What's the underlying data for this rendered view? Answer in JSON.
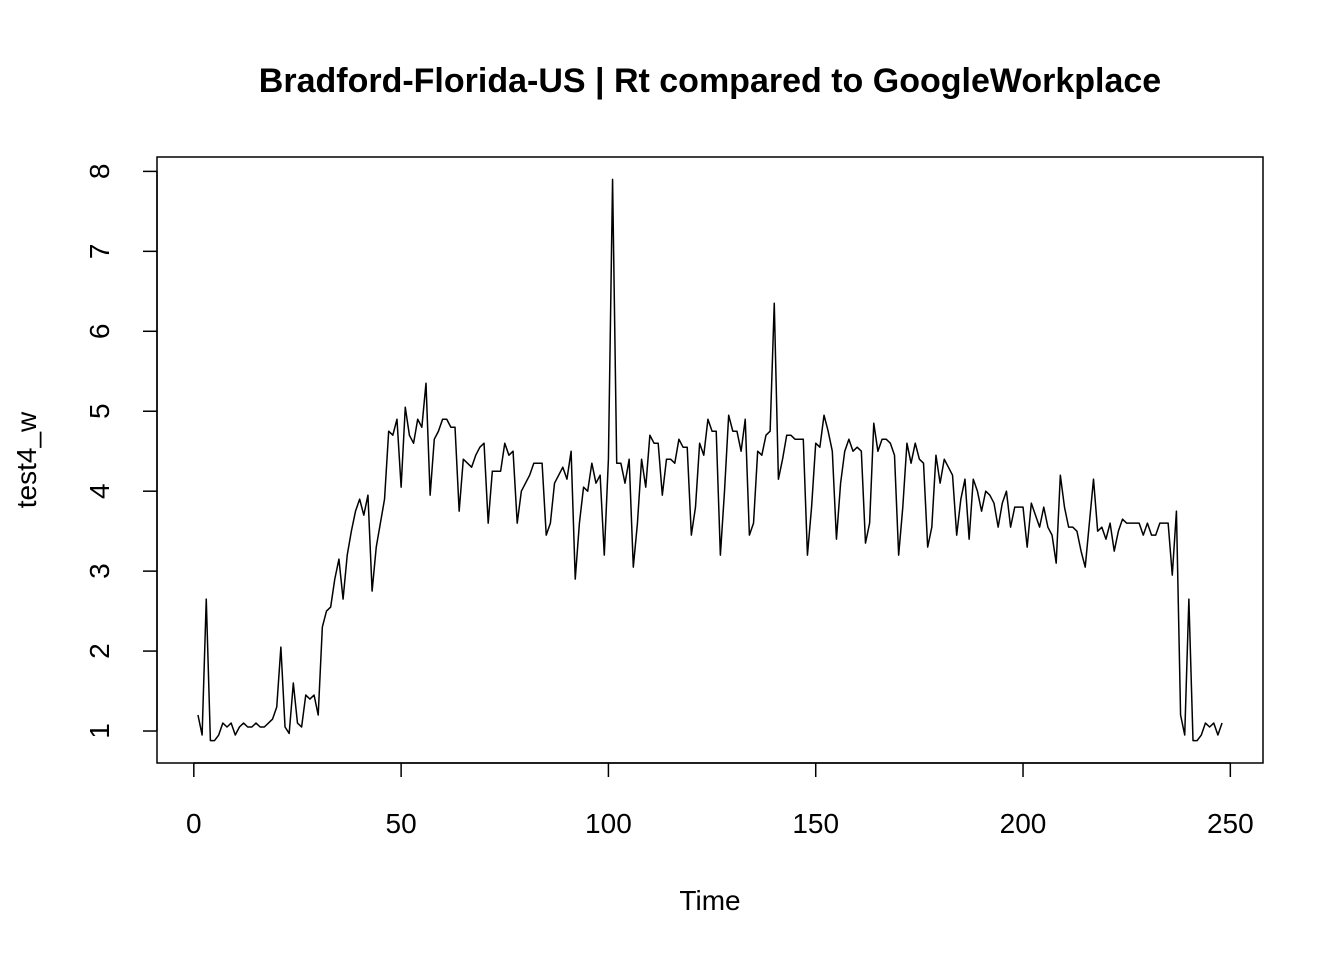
{
  "chart_data": {
    "type": "line",
    "title": "Bradford-Florida-US | Rt compared to GoogleWorkplace",
    "x_label": "Time",
    "y_label": "test4_w",
    "xlim": [
      -8.88,
      257.88
    ],
    "ylim": [
      0.6,
      8.18
    ],
    "xticks": [
      0,
      50,
      100,
      150,
      200,
      250
    ],
    "yticks": [
      1,
      2,
      3,
      4,
      5,
      6,
      7,
      8
    ],
    "series": [
      {
        "color": "#000000",
        "x": [
          1,
          2,
          3,
          4,
          5,
          6,
          7,
          8,
          9,
          10,
          11,
          12,
          13,
          14,
          15,
          16,
          17,
          18,
          19,
          20,
          21,
          22,
          23,
          24,
          25,
          26,
          27,
          28,
          29,
          30,
          31,
          32,
          33,
          34,
          35,
          36,
          37,
          38,
          39,
          40,
          41,
          42,
          43,
          44,
          45,
          46,
          47,
          48,
          49,
          50,
          51,
          52,
          53,
          54,
          55,
          56,
          57,
          58,
          59,
          60,
          61,
          62,
          63,
          64,
          65,
          66,
          67,
          68,
          69,
          70,
          71,
          72,
          73,
          74,
          75,
          76,
          77,
          78,
          79,
          80,
          81,
          82,
          83,
          84,
          85,
          86,
          87,
          88,
          89,
          90,
          91,
          92,
          93,
          94,
          95,
          96,
          97,
          98,
          99,
          100,
          101,
          102,
          103,
          104,
          105,
          106,
          107,
          108,
          109,
          110,
          111,
          112,
          113,
          114,
          115,
          116,
          117,
          118,
          119,
          120,
          121,
          122,
          123,
          124,
          125,
          126,
          127,
          128,
          129,
          130,
          131,
          132,
          133,
          134,
          135,
          136,
          137,
          138,
          139,
          140,
          141,
          142,
          143,
          144,
          145,
          146,
          147,
          148,
          149,
          150,
          151,
          152,
          153,
          154,
          155,
          156,
          157,
          158,
          159,
          160,
          161,
          162,
          163,
          164,
          165,
          166,
          167,
          168,
          169,
          170,
          171,
          172,
          173,
          174,
          175,
          176,
          177,
          178,
          179,
          180,
          181,
          182,
          183,
          184,
          185,
          186,
          187,
          188,
          189,
          190,
          191,
          192,
          193,
          194,
          195,
          196,
          197,
          198,
          199,
          200,
          201,
          202,
          203,
          204,
          205,
          206,
          207,
          208,
          209,
          210,
          211,
          212,
          213,
          214,
          215,
          216,
          217,
          218,
          219,
          220,
          221,
          222,
          223,
          224,
          225,
          226,
          227,
          228,
          229,
          230,
          231,
          232,
          233,
          234,
          235,
          236,
          237,
          238,
          239,
          240,
          241,
          242,
          243,
          244,
          245,
          246,
          247,
          248
        ],
        "values": [
          1.2,
          0.95,
          2.65,
          0.88,
          0.88,
          0.95,
          1.1,
          1.05,
          1.1,
          0.95,
          1.05,
          1.1,
          1.05,
          1.05,
          1.1,
          1.05,
          1.05,
          1.1,
          1.15,
          1.3,
          2.05,
          1.05,
          0.97,
          1.6,
          1.1,
          1.05,
          1.45,
          1.4,
          1.45,
          1.2,
          2.3,
          2.5,
          2.55,
          2.9,
          3.15,
          2.65,
          3.2,
          3.5,
          3.75,
          3.9,
          3.7,
          3.95,
          2.75,
          3.3,
          3.6,
          3.9,
          4.75,
          4.7,
          4.9,
          4.05,
          5.05,
          4.7,
          4.6,
          4.9,
          4.8,
          5.35,
          3.95,
          4.65,
          4.75,
          4.9,
          4.9,
          4.8,
          4.8,
          3.75,
          4.4,
          4.35,
          4.3,
          4.45,
          4.55,
          4.6,
          3.6,
          4.25,
          4.25,
          4.25,
          4.6,
          4.45,
          4.5,
          3.6,
          4.0,
          4.1,
          4.2,
          4.35,
          4.35,
          4.35,
          3.45,
          3.6,
          4.1,
          4.2,
          4.3,
          4.15,
          4.5,
          2.9,
          3.6,
          4.05,
          4.0,
          4.35,
          4.1,
          4.2,
          3.2,
          4.4,
          7.9,
          4.35,
          4.35,
          4.1,
          4.4,
          3.05,
          3.6,
          4.4,
          4.05,
          4.7,
          4.6,
          4.6,
          3.95,
          4.4,
          4.4,
          4.35,
          4.65,
          4.55,
          4.55,
          3.45,
          3.8,
          4.6,
          4.45,
          4.9,
          4.75,
          4.75,
          3.2,
          4.0,
          4.95,
          4.75,
          4.75,
          4.5,
          4.9,
          3.45,
          3.6,
          4.5,
          4.45,
          4.7,
          4.75,
          6.35,
          4.15,
          4.4,
          4.7,
          4.7,
          4.65,
          4.65,
          4.65,
          3.2,
          3.8,
          4.6,
          4.55,
          4.95,
          4.75,
          4.5,
          3.4,
          4.1,
          4.5,
          4.65,
          4.5,
          4.55,
          4.5,
          3.35,
          3.6,
          4.85,
          4.5,
          4.65,
          4.65,
          4.6,
          4.45,
          3.2,
          3.8,
          4.6,
          4.35,
          4.6,
          4.4,
          4.35,
          3.3,
          3.55,
          4.45,
          4.1,
          4.4,
          4.3,
          4.2,
          3.45,
          3.9,
          4.15,
          3.4,
          4.15,
          4.0,
          3.75,
          4.0,
          3.95,
          3.85,
          3.55,
          3.85,
          4.0,
          3.55,
          3.8,
          3.8,
          3.8,
          3.3,
          3.85,
          3.7,
          3.55,
          3.8,
          3.55,
          3.45,
          3.1,
          4.2,
          3.8,
          3.55,
          3.55,
          3.5,
          3.25,
          3.05,
          3.6,
          4.15,
          3.5,
          3.55,
          3.4,
          3.6,
          3.25,
          3.5,
          3.65,
          3.6,
          3.6,
          3.6,
          3.6,
          3.45,
          3.6,
          3.45,
          3.45,
          3.6,
          3.6,
          3.6,
          2.95,
          3.75,
          1.2,
          0.95,
          2.65,
          0.88,
          0.88,
          0.95,
          1.1,
          1.05,
          1.1,
          0.95,
          1.1
        ]
      }
    ]
  }
}
